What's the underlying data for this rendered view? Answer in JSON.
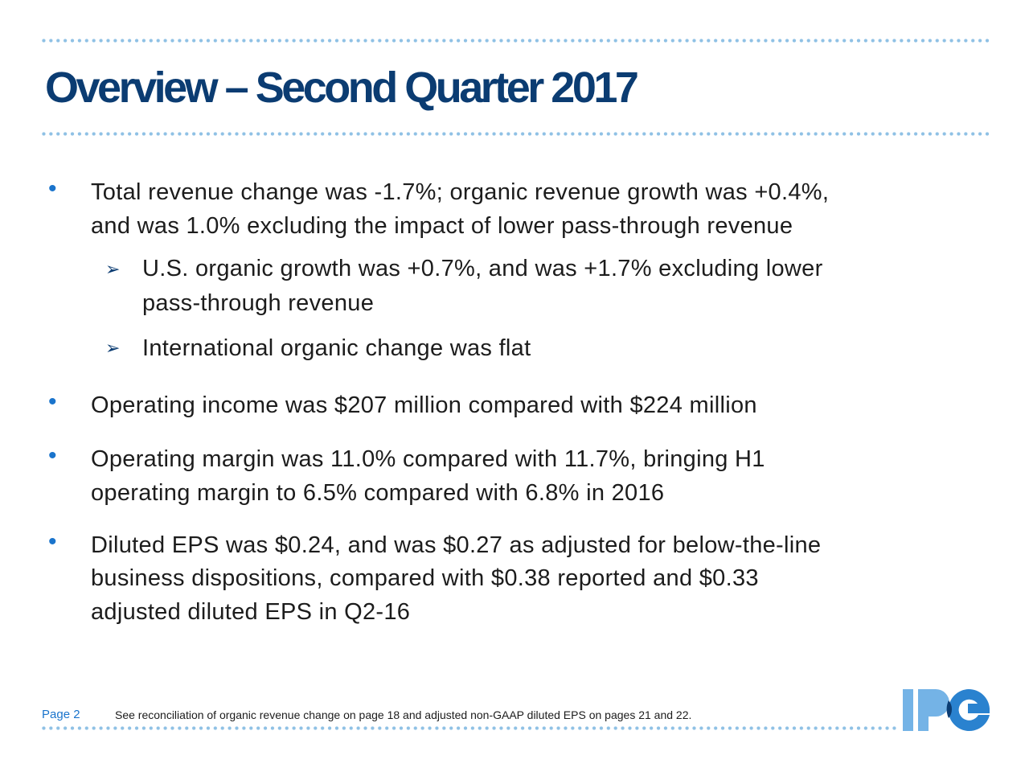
{
  "title": "Overview – Second Quarter 2017",
  "bullets": [
    {
      "lines": [
        "Total revenue change was -1.7%; organic revenue growth was +0.4%,",
        "and was 1.0% excluding the impact of lower pass-through revenue"
      ],
      "sub": [
        {
          "lines": [
            "U.S. organic growth was +0.7%, and was +1.7% excluding lower",
            "pass-through revenue"
          ]
        },
        {
          "lines": [
            "International organic change was flat"
          ]
        }
      ]
    },
    {
      "lines": [
        "Operating income was $207 million compared with $224 million"
      ]
    },
    {
      "lines": [
        "Operating margin was 11.0% compared with 11.7%, bringing H1",
        "operating margin to 6.5% compared with 6.8% in 2016"
      ]
    },
    {
      "lines": [
        "Diluted EPS was $0.24, and was $0.27 as adjusted for below-the-line",
        "business dispositions, compared with $0.38 reported and $0.33",
        "adjusted diluted EPS in Q2-16"
      ]
    }
  ],
  "footer": {
    "page": "Page 2",
    "note": "See reconciliation of organic revenue change on page 18 and adjusted non-GAAP diluted EPS on pages 21 and 22."
  },
  "logo": {
    "text": "IPG"
  },
  "colors": {
    "title": "#0b3c72",
    "bullet": "#1a74cc",
    "dots": "#8fc1e5"
  }
}
